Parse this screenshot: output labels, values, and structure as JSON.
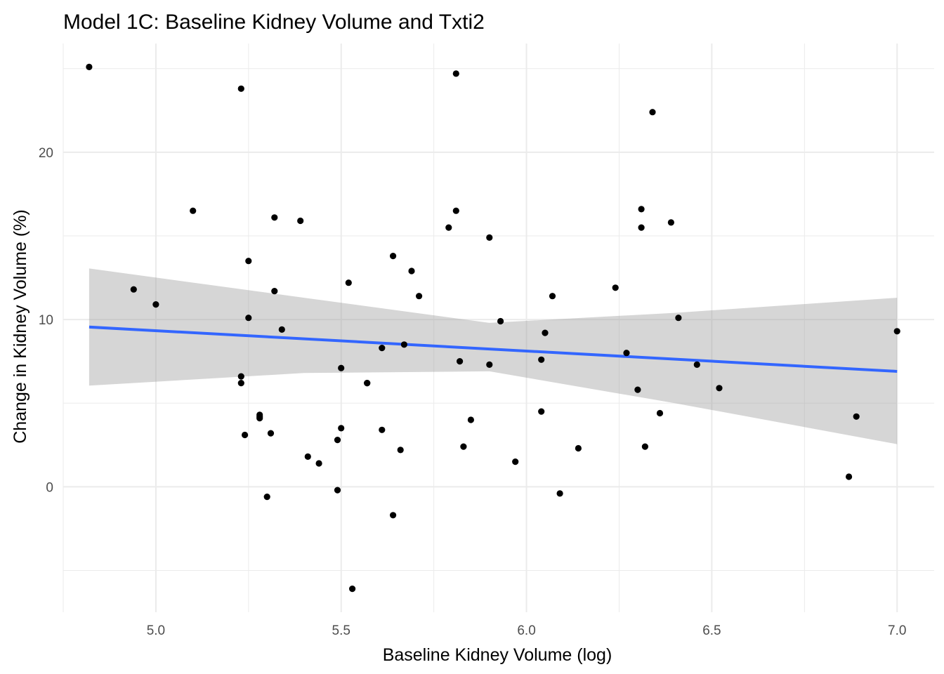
{
  "chart_data": {
    "type": "scatter",
    "title": "Model 1C: Baseline Kidney Volume and Txti2",
    "xlabel": "Baseline Kidney Volume (log)",
    "ylabel": "Change in Kidney Volume (%)",
    "xlim": [
      4.75,
      7.1
    ],
    "ylim": [
      -7.5,
      26.5
    ],
    "x_ticks": [
      {
        "value": 5.0,
        "label": "5.0"
      },
      {
        "value": 5.5,
        "label": "5.5"
      },
      {
        "value": 6.0,
        "label": "6.0"
      },
      {
        "value": 6.5,
        "label": "6.5"
      },
      {
        "value": 7.0,
        "label": "7.0"
      }
    ],
    "x_minor_ticks": [
      4.75,
      5.25,
      5.75,
      6.25,
      6.75
    ],
    "y_ticks": [
      {
        "value": 0,
        "label": "0"
      },
      {
        "value": 10,
        "label": "10"
      },
      {
        "value": 20,
        "label": "20"
      }
    ],
    "y_minor_ticks": [
      -5,
      5,
      15,
      25
    ],
    "grid": true,
    "legend": "none",
    "colors": {
      "points": "#000000",
      "fit_line": "#3366ff",
      "confidence_band": "#999999",
      "grid": "#ebebeb"
    },
    "series": [
      {
        "type": "scatter",
        "points": [
          [
            4.82,
            25.1
          ],
          [
            4.94,
            11.8
          ],
          [
            5.0,
            10.9
          ],
          [
            5.1,
            16.5
          ],
          [
            5.23,
            23.8
          ],
          [
            5.23,
            6.6
          ],
          [
            5.23,
            6.2
          ],
          [
            5.24,
            3.1
          ],
          [
            5.25,
            10.1
          ],
          [
            5.25,
            13.5
          ],
          [
            5.28,
            4.3
          ],
          [
            5.28,
            4.2
          ],
          [
            5.28,
            4.1
          ],
          [
            5.3,
            -0.6
          ],
          [
            5.31,
            3.2
          ],
          [
            5.32,
            16.1
          ],
          [
            5.32,
            11.7
          ],
          [
            5.34,
            9.4
          ],
          [
            5.39,
            15.9
          ],
          [
            5.41,
            1.8
          ],
          [
            5.44,
            1.4
          ],
          [
            5.49,
            2.8
          ],
          [
            5.49,
            -0.2
          ],
          [
            5.5,
            7.1
          ],
          [
            5.5,
            3.5
          ],
          [
            5.52,
            12.2
          ],
          [
            5.53,
            -6.1
          ],
          [
            5.57,
            6.2
          ],
          [
            5.57,
            6.2
          ],
          [
            5.61,
            8.3
          ],
          [
            5.61,
            3.4
          ],
          [
            5.64,
            13.8
          ],
          [
            5.64,
            -1.7
          ],
          [
            5.66,
            2.2
          ],
          [
            5.67,
            8.5
          ],
          [
            5.69,
            12.9
          ],
          [
            5.71,
            11.4
          ],
          [
            5.79,
            15.5
          ],
          [
            5.81,
            24.7
          ],
          [
            5.81,
            16.5
          ],
          [
            5.82,
            7.5
          ],
          [
            5.83,
            2.4
          ],
          [
            5.85,
            4.0
          ],
          [
            5.9,
            14.9
          ],
          [
            5.9,
            7.3
          ],
          [
            5.93,
            9.9
          ],
          [
            5.97,
            1.5
          ],
          [
            6.04,
            4.5
          ],
          [
            6.04,
            7.6
          ],
          [
            6.05,
            9.2
          ],
          [
            6.07,
            11.4
          ],
          [
            6.09,
            -0.4
          ],
          [
            6.14,
            2.3
          ],
          [
            6.24,
            11.9
          ],
          [
            6.27,
            8.0
          ],
          [
            6.3,
            5.8
          ],
          [
            6.31,
            15.5
          ],
          [
            6.31,
            16.6
          ],
          [
            6.32,
            2.4
          ],
          [
            6.34,
            22.4
          ],
          [
            6.36,
            4.4
          ],
          [
            6.39,
            15.8
          ],
          [
            6.41,
            10.1
          ],
          [
            6.46,
            7.3
          ],
          [
            6.52,
            5.9
          ],
          [
            6.87,
            0.6
          ],
          [
            6.89,
            4.2
          ],
          [
            7.0,
            9.3
          ]
        ]
      },
      {
        "type": "line",
        "method": "lm",
        "points": [
          [
            4.82,
            9.55
          ],
          [
            7.0,
            6.9
          ]
        ],
        "ci_lower": [
          [
            4.82,
            6.05
          ],
          [
            5.4,
            6.8
          ],
          [
            5.9,
            6.9
          ],
          [
            6.4,
            5.0
          ],
          [
            7.0,
            2.55
          ]
        ],
        "ci_upper": [
          [
            4.82,
            13.05
          ],
          [
            5.4,
            11.3
          ],
          [
            5.9,
            9.8
          ],
          [
            6.4,
            10.4
          ],
          [
            7.0,
            11.3
          ]
        ]
      }
    ]
  }
}
